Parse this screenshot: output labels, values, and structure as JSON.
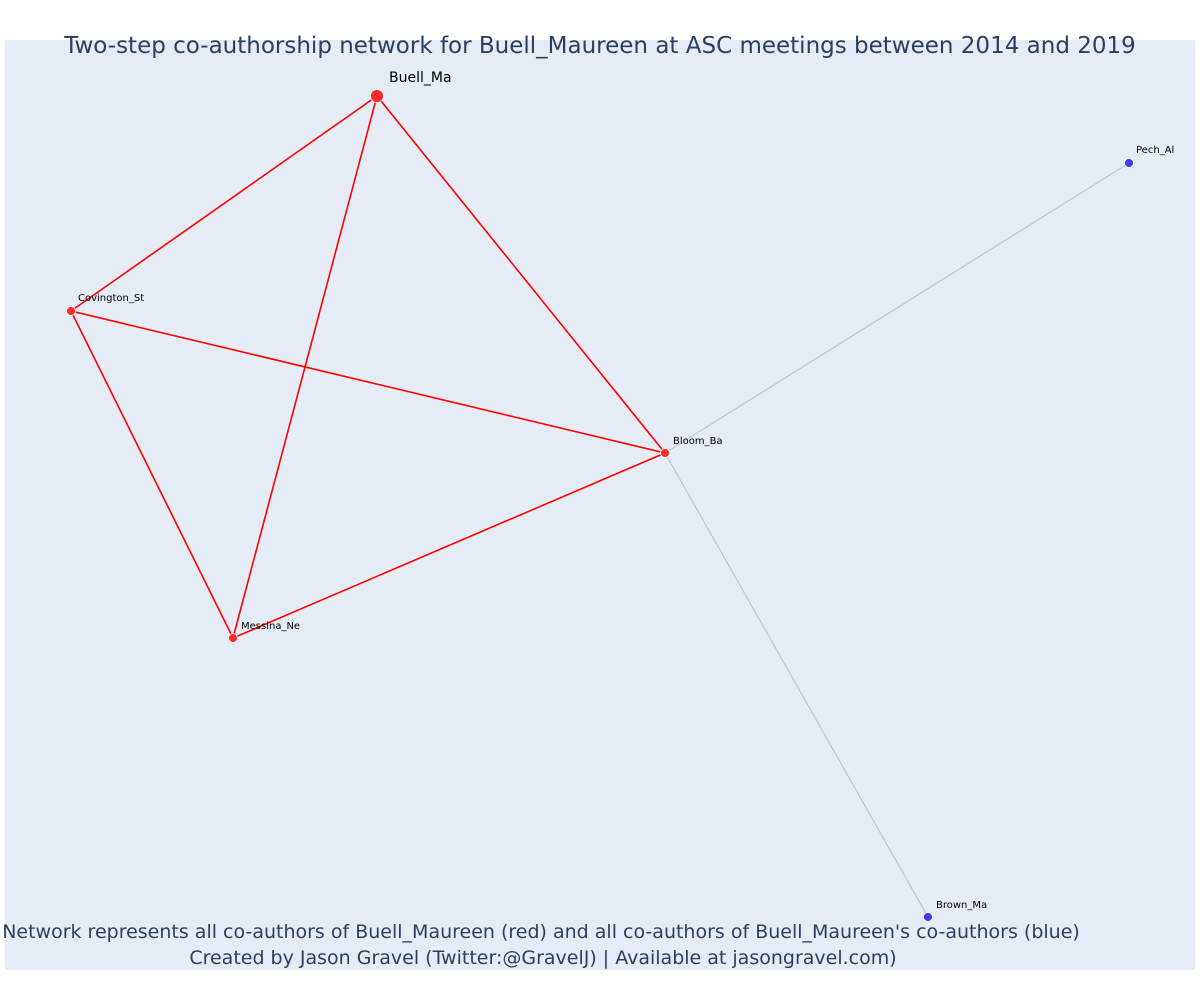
{
  "figure": {
    "title": "Two-step co-authorship network for Buell_Maureen at ASC meetings between 2014 and 2019",
    "caption_line1": "Network represents all co-authors of Buell_Maureen (red) and all co-authors of Buell_Maureen's co-authors (blue)",
    "caption_line2": "Created by Jason Gravel (Twitter:@GravelJ) | Available at jasongravel.com)"
  },
  "colors": {
    "plot_background": "#e5ecf6",
    "coauthor_node": "#ff2a2a",
    "second_step_node": "#3d3df0",
    "coauthor_edge": "#ff0000",
    "second_step_edge": "#b8bfcf",
    "title": "#2a3f5f"
  },
  "network": {
    "nodes": [
      {
        "id": "buell",
        "label": "Buell_Ma",
        "group": "focal"
      },
      {
        "id": "covington",
        "label": "Covington_St",
        "group": "coauthor"
      },
      {
        "id": "bloom",
        "label": "Bloom_Ba",
        "group": "coauthor"
      },
      {
        "id": "messina",
        "label": "Messina_Ne",
        "group": "coauthor"
      },
      {
        "id": "pech",
        "label": "Pech_Al",
        "group": "second_step"
      },
      {
        "id": "brown",
        "label": "Brown_Ma",
        "group": "second_step"
      }
    ],
    "edges": [
      {
        "source": "buell",
        "target": "covington",
        "group": "coauthor"
      },
      {
        "source": "buell",
        "target": "messina",
        "group": "coauthor"
      },
      {
        "source": "buell",
        "target": "bloom",
        "group": "coauthor"
      },
      {
        "source": "covington",
        "target": "bloom",
        "group": "coauthor"
      },
      {
        "source": "covington",
        "target": "messina",
        "group": "coauthor"
      },
      {
        "source": "messina",
        "target": "bloom",
        "group": "coauthor"
      },
      {
        "source": "bloom",
        "target": "pech",
        "group": "second_step"
      },
      {
        "source": "bloom",
        "target": "brown",
        "group": "second_step"
      }
    ]
  }
}
